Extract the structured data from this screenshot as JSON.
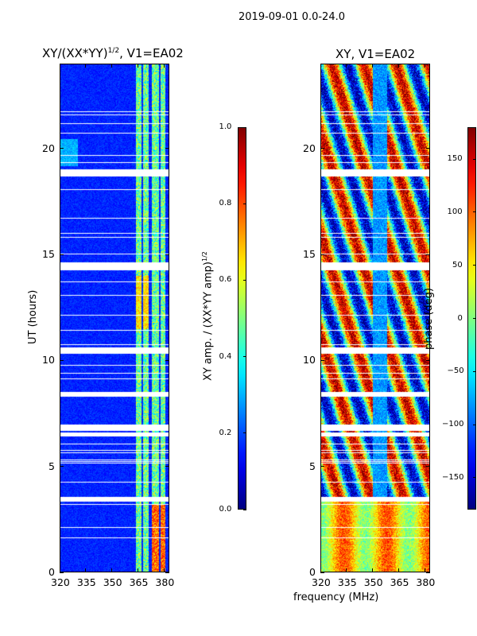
{
  "figure": {
    "suptitle": "2019-09-01 0.0-24.0",
    "shared_xlabel": "frequency (MHz)"
  },
  "chart_data": [
    {
      "type": "heatmap",
      "title": "XY/(XX*YY)",
      "title_sup": "1/2",
      "title_suffix": ", V1=EA02",
      "xlabel": "",
      "ylabel": "UT (hours)",
      "xlim": [
        320,
        383
      ],
      "ylim": [
        0,
        24
      ],
      "xticks": [
        320,
        335,
        350,
        365,
        380
      ],
      "yticks": [
        0,
        5,
        10,
        15,
        20
      ],
      "colorbar": {
        "label": "XY amp. / (XX*YY amp)",
        "label_sup": "1/2",
        "range": [
          0.0,
          1.0
        ],
        "ticks": [
          "0.0",
          "0.2",
          "0.4",
          "0.6",
          "0.8",
          "1.0"
        ],
        "tick_values": [
          0.0,
          0.2,
          0.4,
          0.6,
          0.8,
          1.0
        ],
        "colormap": "jet"
      },
      "flagged_ut_ranges": [
        [
          18.75,
          19.0
        ],
        [
          14.3,
          14.6
        ],
        [
          10.35,
          10.6
        ],
        [
          8.35,
          8.5
        ],
        [
          6.7,
          6.9
        ],
        [
          6.45,
          6.55
        ],
        [
          3.35,
          3.5
        ]
      ],
      "bright_channels_mhz": [
        [
          364,
          367
        ],
        [
          368,
          371
        ],
        [
          373,
          377
        ],
        [
          378,
          381
        ]
      ]
    },
    {
      "type": "heatmap",
      "title": "XY, V1=EA02",
      "xlabel": "frequency (MHz)",
      "ylabel": "",
      "xlim": [
        320,
        383
      ],
      "ylim": [
        0,
        24
      ],
      "xticks": [
        320,
        335,
        350,
        365,
        380
      ],
      "yticks": [
        0,
        5,
        10,
        15,
        20
      ],
      "colorbar": {
        "label": "phase (deg)",
        "range": [
          -180,
          180
        ],
        "ticks": [
          "150",
          "100",
          "50",
          "0",
          "−50",
          "−100",
          "−150"
        ],
        "tick_values": [
          150,
          100,
          50,
          0,
          -50,
          -100,
          -150
        ],
        "colormap": "jet"
      },
      "flagged_ut_ranges": [
        [
          18.75,
          19.0
        ],
        [
          14.3,
          14.6
        ],
        [
          10.35,
          10.6
        ],
        [
          8.35,
          8.5
        ],
        [
          6.7,
          6.9
        ],
        [
          6.45,
          6.55
        ],
        [
          3.35,
          3.5
        ]
      ]
    }
  ]
}
